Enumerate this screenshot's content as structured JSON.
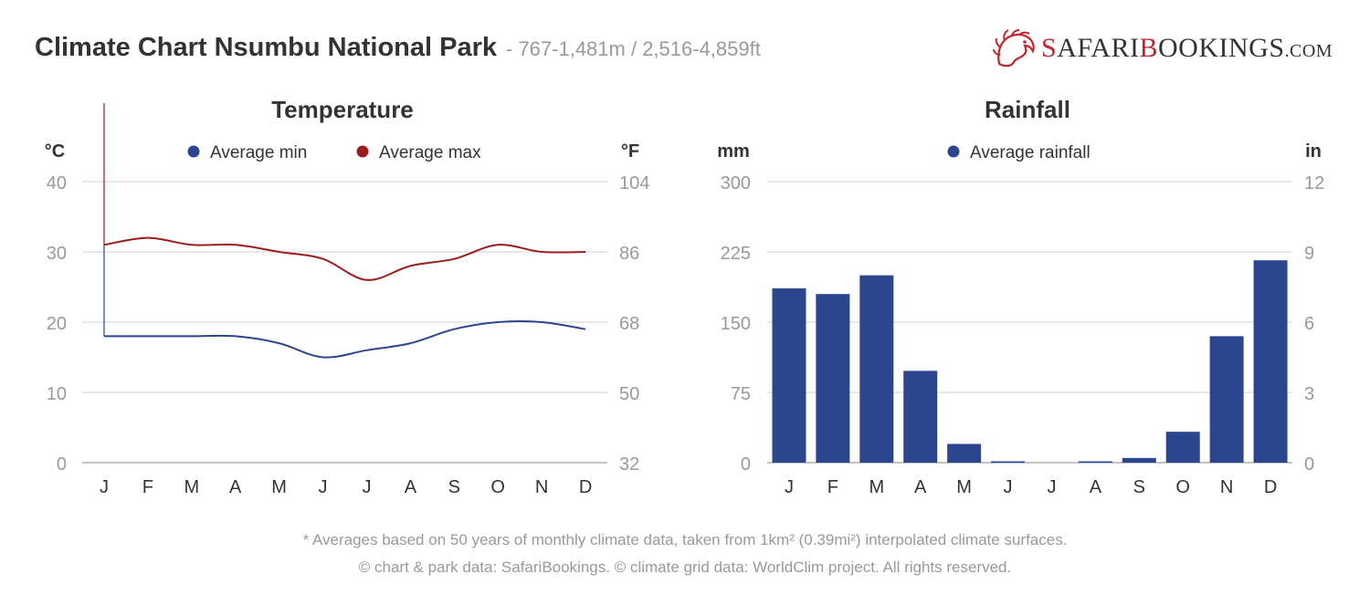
{
  "header": {
    "title": "Climate Chart Nsumbu National Park",
    "subtitle": "- 767-1,481m / 2,516-4,859ft"
  },
  "logo": {
    "text_red": "S",
    "text_1": "AFARI",
    "text_red2": "B",
    "text_2": "OOKINGS",
    "text_dom": ".COM"
  },
  "footer": {
    "line1": "* Averages based on 50 years of monthly climate data, taken from 1km² (0.39mi²) interpolated climate surfaces.",
    "line2": "© chart & park data: SafariBookings. © climate grid data: WorldClim project. All rights reserved."
  },
  "colors": {
    "min": "#2b4590",
    "max": "#9b1c1c",
    "rain": "#2b4590",
    "grid": "#d0d0d0",
    "tick": "#999999",
    "label": "#333333"
  },
  "chart_data": [
    {
      "type": "line",
      "title": "Temperature",
      "ylabel": "°C",
      "ylabel_right": "°F",
      "categories": [
        "J",
        "F",
        "M",
        "A",
        "M",
        "J",
        "J",
        "A",
        "S",
        "O",
        "N",
        "D"
      ],
      "ylim": [
        0,
        40
      ],
      "yticks": [
        0,
        10,
        20,
        30,
        40
      ],
      "yticks_right": [
        32,
        50,
        68,
        86,
        104
      ],
      "legend": "top",
      "series": [
        {
          "name": "Average min",
          "color": "#2b4590",
          "values": [
            18,
            18,
            18,
            18,
            17,
            15,
            16,
            17,
            19,
            20,
            20,
            19
          ]
        },
        {
          "name": "Average max",
          "color": "#9b1c1c",
          "values": [
            31,
            32,
            31,
            31,
            30,
            29,
            26,
            28,
            29,
            31,
            30,
            30
          ]
        }
      ]
    },
    {
      "type": "bar",
      "title": "Rainfall",
      "ylabel": "mm",
      "ylabel_right": "in",
      "categories": [
        "J",
        "F",
        "M",
        "A",
        "M",
        "J",
        "J",
        "A",
        "S",
        "O",
        "N",
        "D"
      ],
      "ylim": [
        0,
        300
      ],
      "yticks": [
        0,
        75,
        150,
        225,
        300
      ],
      "yticks_right": [
        0,
        3,
        6,
        9,
        12
      ],
      "legend": "top",
      "series": [
        {
          "name": "Average rainfall",
          "color": "#2b4590",
          "values": [
            186,
            180,
            200,
            98,
            20,
            1,
            0,
            1,
            5,
            33,
            135,
            216
          ]
        }
      ]
    }
  ]
}
